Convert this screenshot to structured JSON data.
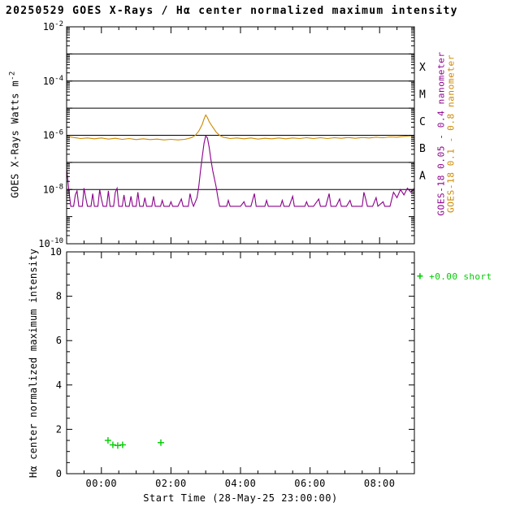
{
  "title": "20250529 GOES X-Rays / Hα center normalized maximum intensity",
  "colors": {
    "purple": "#8b008b",
    "orange": "#cc8800",
    "green": "#00cc00",
    "axis": "#000000",
    "background": "#ffffff"
  },
  "x_axis": {
    "label": "Start Time (28-May-25 23:00:00)",
    "range": [
      0,
      10
    ],
    "minor_step": 0.5,
    "major_ticks": [
      {
        "t": 1,
        "label": "00:00"
      },
      {
        "t": 3,
        "label": "02:00"
      },
      {
        "t": 5,
        "label": "04:00"
      },
      {
        "t": 7,
        "label": "06:00"
      },
      {
        "t": 9,
        "label": "08:00"
      }
    ]
  },
  "xray_panel": {
    "ylabel": {
      "text": "GOES X-Rays Watts m",
      "sup": "-2"
    },
    "ylim_exp": [
      -10,
      -2
    ],
    "ytick_label_exponents": [
      -2,
      -4,
      -6,
      -8,
      -10
    ],
    "flare_class_lines_exp": [
      -3,
      -4,
      -5,
      -6,
      -7,
      -8
    ],
    "flare_class_labels": [
      {
        "label": "X",
        "exp": -3.5
      },
      {
        "label": "M",
        "exp": -4.5
      },
      {
        "label": "C",
        "exp": -5.5
      },
      {
        "label": "B",
        "exp": -6.5
      },
      {
        "label": "A",
        "exp": -7.5
      }
    ],
    "right_legend": [
      {
        "label": "GOES-18 0.05 - 0.4 nanometer",
        "color": "purple"
      },
      {
        "label": "GOES-18  0.1 - 0.8 nanometer",
        "color": "orange"
      }
    ]
  },
  "halpha_panel": {
    "ylabel": "Hα center normalized maximum intensity",
    "ylim": [
      0,
      10
    ],
    "yticks": [
      0,
      2,
      4,
      6,
      8,
      10
    ],
    "legend": {
      "marker": "+",
      "label": "+0.00 short"
    }
  },
  "chart_data": [
    {
      "type": "line",
      "title": "GOES X-Rays",
      "x_unit": "hours since 28-May-25 23:00:00",
      "y_unit": "log10 of X-ray flux, Watts m^-2",
      "xlim": [
        0,
        10
      ],
      "ylim_log10": [
        -10,
        -2
      ],
      "grid": "flare-class horizontal lines at 1e-3..1e-8",
      "legend_position": "right, rotated",
      "series": [
        {
          "name": "GOES-18 0.05 - 0.4 nanometer",
          "color": "purple",
          "points_log10": [
            [
              0.0,
              -7.25
            ],
            [
              0.03,
              -7.6
            ],
            [
              0.07,
              -8.1
            ],
            [
              0.12,
              -8.62
            ],
            [
              0.2,
              -8.62
            ],
            [
              0.25,
              -8.2
            ],
            [
              0.3,
              -8.05
            ],
            [
              0.35,
              -8.62
            ],
            [
              0.45,
              -8.62
            ],
            [
              0.5,
              -7.95
            ],
            [
              0.55,
              -8.3
            ],
            [
              0.6,
              -8.62
            ],
            [
              0.7,
              -8.62
            ],
            [
              0.75,
              -8.15
            ],
            [
              0.8,
              -8.62
            ],
            [
              0.9,
              -8.62
            ],
            [
              0.95,
              -8.0
            ],
            [
              1.0,
              -8.35
            ],
            [
              1.05,
              -8.62
            ],
            [
              1.15,
              -8.62
            ],
            [
              1.2,
              -8.05
            ],
            [
              1.25,
              -8.62
            ],
            [
              1.35,
              -8.62
            ],
            [
              1.4,
              -8.1
            ],
            [
              1.45,
              -7.95
            ],
            [
              1.5,
              -8.62
            ],
            [
              1.6,
              -8.62
            ],
            [
              1.65,
              -8.2
            ],
            [
              1.7,
              -8.62
            ],
            [
              1.8,
              -8.62
            ],
            [
              1.85,
              -8.25
            ],
            [
              1.9,
              -8.62
            ],
            [
              2.0,
              -8.62
            ],
            [
              2.05,
              -8.1
            ],
            [
              2.1,
              -8.62
            ],
            [
              2.2,
              -8.62
            ],
            [
              2.25,
              -8.3
            ],
            [
              2.3,
              -8.62
            ],
            [
              2.45,
              -8.62
            ],
            [
              2.5,
              -8.25
            ],
            [
              2.55,
              -8.62
            ],
            [
              2.7,
              -8.62
            ],
            [
              2.75,
              -8.4
            ],
            [
              2.8,
              -8.62
            ],
            [
              2.95,
              -8.62
            ],
            [
              3.0,
              -8.45
            ],
            [
              3.05,
              -8.62
            ],
            [
              3.2,
              -8.62
            ],
            [
              3.3,
              -8.35
            ],
            [
              3.35,
              -8.62
            ],
            [
              3.5,
              -8.62
            ],
            [
              3.55,
              -8.15
            ],
            [
              3.6,
              -8.45
            ],
            [
              3.65,
              -8.62
            ],
            [
              3.75,
              -8.3
            ],
            [
              3.8,
              -7.9
            ],
            [
              3.85,
              -7.3
            ],
            [
              3.9,
              -6.8
            ],
            [
              3.95,
              -6.3
            ],
            [
              4.0,
              -6.02
            ],
            [
              4.05,
              -6.1
            ],
            [
              4.1,
              -6.45
            ],
            [
              4.15,
              -6.9
            ],
            [
              4.2,
              -7.3
            ],
            [
              4.3,
              -7.9
            ],
            [
              4.35,
              -8.3
            ],
            [
              4.4,
              -8.62
            ],
            [
              4.6,
              -8.62
            ],
            [
              4.65,
              -8.4
            ],
            [
              4.7,
              -8.62
            ],
            [
              4.85,
              -8.62
            ],
            [
              5.0,
              -8.62
            ],
            [
              5.1,
              -8.45
            ],
            [
              5.15,
              -8.62
            ],
            [
              5.3,
              -8.62
            ],
            [
              5.4,
              -8.15
            ],
            [
              5.45,
              -8.62
            ],
            [
              5.6,
              -8.62
            ],
            [
              5.7,
              -8.62
            ],
            [
              5.75,
              -8.4
            ],
            [
              5.8,
              -8.62
            ],
            [
              6.0,
              -8.62
            ],
            [
              6.15,
              -8.62
            ],
            [
              6.2,
              -8.4
            ],
            [
              6.25,
              -8.62
            ],
            [
              6.4,
              -8.62
            ],
            [
              6.5,
              -8.25
            ],
            [
              6.55,
              -8.62
            ],
            [
              6.7,
              -8.62
            ],
            [
              6.85,
              -8.62
            ],
            [
              6.9,
              -8.45
            ],
            [
              6.95,
              -8.62
            ],
            [
              7.1,
              -8.62
            ],
            [
              7.25,
              -8.35
            ],
            [
              7.3,
              -8.62
            ],
            [
              7.45,
              -8.62
            ],
            [
              7.55,
              -8.15
            ],
            [
              7.6,
              -8.62
            ],
            [
              7.75,
              -8.62
            ],
            [
              7.85,
              -8.35
            ],
            [
              7.9,
              -8.62
            ],
            [
              8.05,
              -8.62
            ],
            [
              8.15,
              -8.4
            ],
            [
              8.2,
              -8.62
            ],
            [
              8.35,
              -8.62
            ],
            [
              8.5,
              -8.62
            ],
            [
              8.55,
              -8.1
            ],
            [
              8.6,
              -8.35
            ],
            [
              8.65,
              -8.62
            ],
            [
              8.8,
              -8.62
            ],
            [
              8.9,
              -8.3
            ],
            [
              8.95,
              -8.62
            ],
            [
              9.1,
              -8.45
            ],
            [
              9.15,
              -8.62
            ],
            [
              9.3,
              -8.62
            ],
            [
              9.4,
              -8.1
            ],
            [
              9.5,
              -8.3
            ],
            [
              9.6,
              -8.0
            ],
            [
              9.7,
              -8.2
            ],
            [
              9.8,
              -7.95
            ],
            [
              9.9,
              -8.1
            ],
            [
              10.0,
              -7.95
            ]
          ]
        },
        {
          "name": "GOES-18 0.1 - 0.8 nanometer",
          "color": "orange",
          "points_log10": [
            [
              0.0,
              -6.03
            ],
            [
              0.2,
              -6.08
            ],
            [
              0.4,
              -6.12
            ],
            [
              0.6,
              -6.1
            ],
            [
              0.8,
              -6.13
            ],
            [
              1.0,
              -6.1
            ],
            [
              1.2,
              -6.14
            ],
            [
              1.4,
              -6.11
            ],
            [
              1.6,
              -6.15
            ],
            [
              1.8,
              -6.12
            ],
            [
              2.0,
              -6.16
            ],
            [
              2.2,
              -6.13
            ],
            [
              2.4,
              -6.16
            ],
            [
              2.6,
              -6.14
            ],
            [
              2.8,
              -6.17
            ],
            [
              3.0,
              -6.15
            ],
            [
              3.2,
              -6.17
            ],
            [
              3.4,
              -6.15
            ],
            [
              3.5,
              -6.12
            ],
            [
              3.6,
              -6.08
            ],
            [
              3.7,
              -6.0
            ],
            [
              3.8,
              -5.85
            ],
            [
              3.9,
              -5.6
            ],
            [
              3.95,
              -5.4
            ],
            [
              4.0,
              -5.25
            ],
            [
              4.05,
              -5.35
            ],
            [
              4.1,
              -5.5
            ],
            [
              4.2,
              -5.7
            ],
            [
              4.3,
              -5.88
            ],
            [
              4.4,
              -6.0
            ],
            [
              4.5,
              -6.07
            ],
            [
              4.7,
              -6.12
            ],
            [
              4.9,
              -6.1
            ],
            [
              5.1,
              -6.13
            ],
            [
              5.3,
              -6.1
            ],
            [
              5.5,
              -6.14
            ],
            [
              5.7,
              -6.11
            ],
            [
              5.9,
              -6.13
            ],
            [
              6.1,
              -6.1
            ],
            [
              6.3,
              -6.13
            ],
            [
              6.5,
              -6.1
            ],
            [
              6.7,
              -6.12
            ],
            [
              6.9,
              -6.09
            ],
            [
              7.1,
              -6.12
            ],
            [
              7.3,
              -6.09
            ],
            [
              7.5,
              -6.12
            ],
            [
              7.7,
              -6.09
            ],
            [
              7.9,
              -6.11
            ],
            [
              8.1,
              -6.08
            ],
            [
              8.3,
              -6.11
            ],
            [
              8.5,
              -6.08
            ],
            [
              8.7,
              -6.1
            ],
            [
              8.9,
              -6.07
            ],
            [
              9.1,
              -6.09
            ],
            [
              9.3,
              -6.06
            ],
            [
              9.5,
              -6.07
            ],
            [
              9.7,
              -6.04
            ],
            [
              9.9,
              -6.02
            ],
            [
              10.0,
              -6.0
            ]
          ]
        }
      ]
    },
    {
      "type": "scatter",
      "title": "Hα center normalized maximum intensity",
      "x_unit": "hours since 28-May-25 23:00:00",
      "xlim": [
        0,
        10
      ],
      "ylim": [
        0,
        10
      ],
      "marker": "plus",
      "series": [
        {
          "name": "+0.00 short",
          "color": "green",
          "points": [
            [
              1.19,
              1.5
            ],
            [
              1.33,
              1.3
            ],
            [
              1.47,
              1.27
            ],
            [
              1.61,
              1.3
            ],
            [
              2.71,
              1.4
            ]
          ]
        }
      ]
    }
  ]
}
